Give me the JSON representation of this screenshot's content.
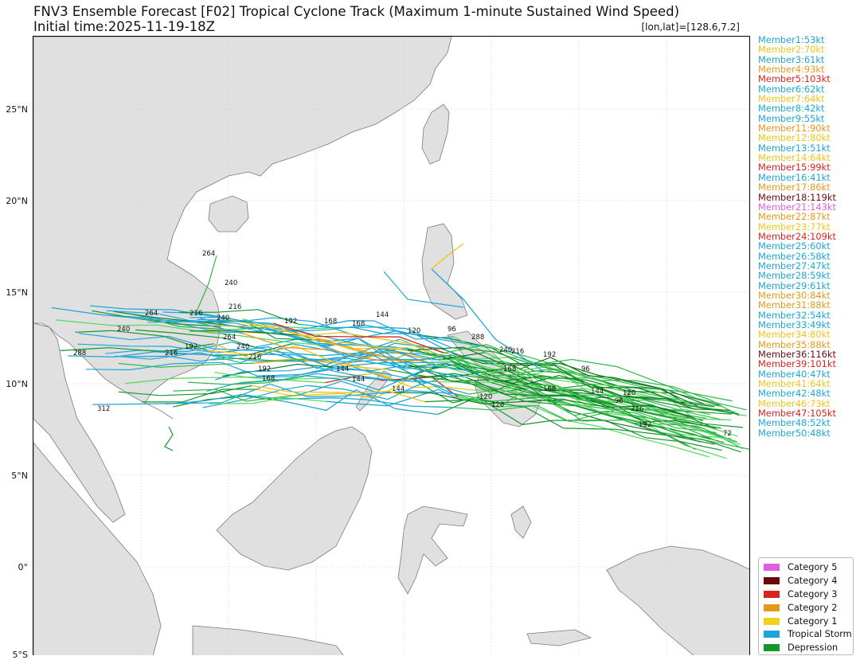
{
  "header": {
    "title": "FNV3 Ensemble Forecast [F02] Tropical Cyclone Track (Maximum 1-minute Sustained Wind Speed)",
    "initial_time": "Initial time:2025-11-19-18Z",
    "lonlat": "[lon,lat]=[128.6,7.2]"
  },
  "map": {
    "lat_labels": [
      "25°N",
      "20°N",
      "15°N",
      "10°N",
      "5°N",
      "0°",
      "5°S"
    ],
    "land_color": "#e0e0e0",
    "ocean_color": "#ffffff",
    "border_color": "#555555",
    "grid": true
  },
  "members": [
    {
      "label": "Member1:53kt",
      "color": "#1ea7d6"
    },
    {
      "label": "Member2:70kt",
      "color": "#f0c419"
    },
    {
      "label": "Member3:61kt",
      "color": "#1ea7d6"
    },
    {
      "label": "Member4:93kt",
      "color": "#e39a1b"
    },
    {
      "label": "Member5:103kt",
      "color": "#d8231f"
    },
    {
      "label": "Member6:62kt",
      "color": "#1ea7d6"
    },
    {
      "label": "Member7:64kt",
      "color": "#f0c419"
    },
    {
      "label": "Member8:42kt",
      "color": "#1ea7d6"
    },
    {
      "label": "Member9:55kt",
      "color": "#1ea7d6"
    },
    {
      "label": "Member11:90kt",
      "color": "#e39a1b"
    },
    {
      "label": "Member12:80kt",
      "color": "#f0c419"
    },
    {
      "label": "Member13:51kt",
      "color": "#1ea7d6"
    },
    {
      "label": "Member14:64kt",
      "color": "#f0c419"
    },
    {
      "label": "Member15:99kt",
      "color": "#d8231f"
    },
    {
      "label": "Member16:41kt",
      "color": "#1ea7d6"
    },
    {
      "label": "Member17:86kt",
      "color": "#e39a1b"
    },
    {
      "label": "Member18:119kt",
      "color": "#6b0a0a"
    },
    {
      "label": "Member21:143kt",
      "color": "#e05fe0"
    },
    {
      "label": "Member22:87kt",
      "color": "#e39a1b"
    },
    {
      "label": "Member23:77kt",
      "color": "#f0c419"
    },
    {
      "label": "Member24:109kt",
      "color": "#d8231f"
    },
    {
      "label": "Member25:60kt",
      "color": "#1ea7d6"
    },
    {
      "label": "Member26:58kt",
      "color": "#1ea7d6"
    },
    {
      "label": "Member27:47kt",
      "color": "#1ea7d6"
    },
    {
      "label": "Member28:59kt",
      "color": "#1ea7d6"
    },
    {
      "label": "Member29:61kt",
      "color": "#1ea7d6"
    },
    {
      "label": "Member30:84kt",
      "color": "#e39a1b"
    },
    {
      "label": "Member31:88kt",
      "color": "#e39a1b"
    },
    {
      "label": "Member32:54kt",
      "color": "#1ea7d6"
    },
    {
      "label": "Member33:49kt",
      "color": "#1ea7d6"
    },
    {
      "label": "Member34:80kt",
      "color": "#f0c419"
    },
    {
      "label": "Member35:88kt",
      "color": "#e39a1b"
    },
    {
      "label": "Member36:116kt",
      "color": "#6b0a0a"
    },
    {
      "label": "Member39:101kt",
      "color": "#d8231f"
    },
    {
      "label": "Member40:47kt",
      "color": "#1ea7d6"
    },
    {
      "label": "Member41:64kt",
      "color": "#f0c419"
    },
    {
      "label": "Member42:48kt",
      "color": "#1ea7d6"
    },
    {
      "label": "Member46:73kt",
      "color": "#f0c419"
    },
    {
      "label": "Member47:105kt",
      "color": "#d8231f"
    },
    {
      "label": "Member48:52kt",
      "color": "#1ea7d6"
    },
    {
      "label": "Member50:48kt",
      "color": "#1ea7d6"
    }
  ],
  "legend": [
    {
      "label": "Category 5",
      "color": "#e05fe0"
    },
    {
      "label": "Category 4",
      "color": "#6b0a0a"
    },
    {
      "label": "Category 3",
      "color": "#d8231f"
    },
    {
      "label": "Category 2",
      "color": "#e39a1b"
    },
    {
      "label": "Category 1",
      "color": "#f0d21a"
    },
    {
      "label": "Tropical Storm",
      "color": "#1ea7d6"
    },
    {
      "label": "Depression",
      "color": "#14962a"
    }
  ],
  "track_labels": [
    "264",
    "240",
    "216",
    "240",
    "264",
    "240",
    "216",
    "192",
    "168",
    "144",
    "120",
    "96",
    "72",
    "288",
    "312",
    "216",
    "192",
    "168",
    "144",
    "120",
    "96",
    "264",
    "240",
    "216",
    "192",
    "168",
    "144",
    "120",
    "96",
    "288",
    "240",
    "216",
    "192",
    "168",
    "144",
    "120",
    "216",
    "192",
    "168",
    "144"
  ]
}
